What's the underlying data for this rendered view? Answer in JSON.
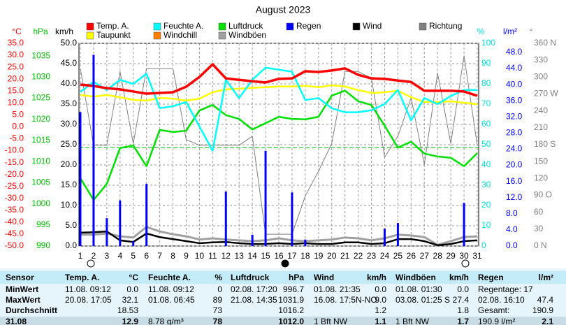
{
  "chart_data": {
    "type": "line",
    "title": "August 2023",
    "x": [
      1,
      2,
      3,
      4,
      5,
      6,
      7,
      8,
      9,
      10,
      11,
      12,
      13,
      14,
      15,
      16,
      17,
      18,
      19,
      20,
      21,
      22,
      23,
      24,
      25,
      26,
      27,
      28,
      29,
      30,
      31
    ],
    "xlim": [
      1,
      31
    ],
    "xticks": [
      1,
      2,
      3,
      4,
      5,
      6,
      7,
      8,
      9,
      10,
      11,
      12,
      13,
      14,
      15,
      16,
      17,
      18,
      19,
      20,
      21,
      22,
      23,
      24,
      25,
      26,
      27,
      28,
      29,
      30,
      31
    ],
    "grid": true,
    "hpa_reference": 1013.25,
    "axes": [
      {
        "label": "°C",
        "color": "#ff0000",
        "ylim": [
          -50,
          35
        ],
        "yticks": [
          {
            "value": 35,
            "label": "35.0"
          },
          {
            "value": 30,
            "label": "30.0"
          },
          {
            "value": 25,
            "label": "25.0"
          },
          {
            "value": 20,
            "label": "20.0"
          },
          {
            "value": 15,
            "label": "15.0"
          },
          {
            "value": 10,
            "label": "10.0"
          },
          {
            "value": 5,
            "label": "5.0"
          },
          {
            "value": 0,
            "label": "0.0"
          },
          {
            "value": -5,
            "label": "-5.0"
          },
          {
            "value": -10,
            "label": "-10.0"
          },
          {
            "value": -15,
            "label": "-15.0"
          },
          {
            "value": -20,
            "label": "-20.0"
          },
          {
            "value": -25,
            "label": "-25.0"
          },
          {
            "value": -30,
            "label": "-30.0"
          },
          {
            "value": -35,
            "label": "-35.0"
          },
          {
            "value": -40,
            "label": "-40.0"
          },
          {
            "value": -45,
            "label": "-45.0"
          },
          {
            "value": -50,
            "label": "-50.0"
          }
        ]
      },
      {
        "label": "hPa",
        "color": "#00c000",
        "ylim": [
          990,
          1038
        ],
        "yticks": [
          1035,
          1030,
          1025,
          1020,
          1015,
          1010,
          1005,
          1000,
          995,
          990
        ]
      },
      {
        "label": "km/h",
        "color": "#000000",
        "ylim": [
          0,
          50
        ],
        "yticks": [
          {
            "value": 50,
            "label": "50.0"
          },
          {
            "value": 45,
            "label": "45.0"
          },
          {
            "value": 40,
            "label": "40.0"
          },
          {
            "value": 35,
            "label": "35.0"
          },
          {
            "value": 30,
            "label": "30.0"
          },
          {
            "value": 25,
            "label": "25.0"
          },
          {
            "value": 20,
            "label": "20.0"
          },
          {
            "value": 15,
            "label": "15.0"
          },
          {
            "value": 10,
            "label": "10.0"
          },
          {
            "value": 5,
            "label": "5.0"
          },
          {
            "value": 0,
            "label": "0.0"
          }
        ]
      },
      {
        "label": "%",
        "color": "#00e0e0",
        "ylim": [
          0,
          100
        ],
        "yticks": [
          100,
          90,
          80,
          70,
          60,
          50,
          40,
          30,
          20,
          10,
          0
        ]
      },
      {
        "label": "l/m²",
        "color": "#0000ff",
        "ylim": [
          0,
          50.25
        ],
        "yticks": [
          {
            "value": 48,
            "label": "48.0"
          },
          {
            "value": 44,
            "label": "44.0"
          },
          {
            "value": 40,
            "label": "40.0"
          },
          {
            "value": 36,
            "label": "36.0"
          },
          {
            "value": 32,
            "label": "32.0"
          },
          {
            "value": 28,
            "label": "28.0"
          },
          {
            "value": 24,
            "label": "24.0"
          },
          {
            "value": 20,
            "label": "20.0"
          },
          {
            "value": 16,
            "label": "16.0"
          },
          {
            "value": 12,
            "label": "12.0"
          },
          {
            "value": 8,
            "label": "8.0"
          },
          {
            "value": 4,
            "label": "4.0"
          },
          {
            "value": 0,
            "label": "0.0"
          }
        ]
      },
      {
        "label": "°",
        "color": "#808080",
        "ylim": [
          0,
          360
        ],
        "yticks": [
          {
            "value": 360,
            "label": "360 N"
          },
          330,
          300,
          {
            "value": 270,
            "label": "270 W"
          },
          240,
          210,
          {
            "value": 180,
            "label": "180 S"
          },
          150,
          120,
          {
            "value": 90,
            "label": "90 O"
          },
          60,
          30,
          {
            "value": 0,
            "label": "0 N"
          }
        ]
      }
    ],
    "series": [
      {
        "name": "Temp. A.",
        "color": "#ff0000",
        "axis": 0,
        "width": 3.5,
        "values": [
          17.7,
          17.1,
          16.2,
          15.7,
          14.8,
          13.9,
          14.2,
          14.5,
          16.8,
          20.9,
          26.2,
          20.3,
          19.7,
          19.1,
          18.6,
          20.1,
          20.3,
          23.3,
          23.0,
          23.6,
          24.5,
          21.8,
          20.3,
          20.1,
          19.4,
          18.8,
          15.1,
          15.1,
          15.1,
          14.8,
          13.0
        ]
      },
      {
        "name": "Feuchte A.",
        "color": "#00ffff",
        "axis": 3,
        "width": 2.5,
        "values": [
          76,
          81,
          77,
          82,
          80,
          85,
          68,
          69,
          71,
          59,
          47,
          82,
          73,
          82,
          88,
          87,
          86,
          72,
          73,
          68,
          66,
          66,
          67,
          70,
          77,
          62,
          73,
          70,
          74,
          77,
          77
        ]
      },
      {
        "name": "Luftdruck",
        "color": "#00e000",
        "axis": 1,
        "width": 2.5,
        "values": [
          1006.1,
          1000.9,
          1004.7,
          1013.2,
          1013.8,
          1008.9,
          1017.5,
          1017.0,
          1017.3,
          1022.1,
          1023.4,
          1021.0,
          1020.1,
          1017.6,
          1019.1,
          1020.6,
          1020.1,
          1020.0,
          1020.6,
          1025.6,
          1026.8,
          1024.3,
          1023.4,
          1018.5,
          1013.3,
          1014.7,
          1011.9,
          1011.2,
          1010.9,
          1008.9,
          1012.0
        ]
      },
      {
        "name": "Regen",
        "color": "#0000ff",
        "axis": 4,
        "style": "bar",
        "values": [
          33.2,
          47.4,
          6.9,
          11.3,
          1.2,
          15.4,
          0,
          0,
          0,
          0,
          0,
          13.5,
          0,
          2.8,
          23.6,
          0,
          13.3,
          1.6,
          0,
          0,
          0,
          0,
          0,
          4.3,
          5.7,
          0,
          0,
          0,
          0,
          10.7,
          0
        ]
      },
      {
        "name": "Wind",
        "color": "#000000",
        "axis": 2,
        "width": 2.5,
        "values": [
          3.3,
          3.4,
          3.6,
          1.4,
          1.0,
          3.1,
          2.2,
          1.7,
          1.2,
          0.7,
          0.9,
          1.0,
          0.7,
          0.5,
          0.5,
          0.7,
          0.5,
          0.7,
          0.5,
          0.5,
          0.9,
          0.9,
          0.5,
          0.7,
          1.7,
          1.7,
          1.2,
          0.2,
          0.5,
          1.2,
          1.4
        ]
      },
      {
        "name": "Richtung",
        "color": "#808080",
        "axis": 5,
        "width": 1,
        "values": [
          315,
          179,
          179,
          310,
          182,
          315,
          315,
          315,
          189,
          179,
          179,
          179,
          179,
          195,
          21,
          21,
          21,
          89,
          133,
          182,
          310,
          310,
          298,
          158,
          195,
          263,
          145,
          307,
          182,
          338,
          179
        ]
      },
      {
        "name": "Taupunkt",
        "color": "#ffff00",
        "axis": 0,
        "width": 2.5,
        "values": [
          13.3,
          12.7,
          13.3,
          12.4,
          11.3,
          11.0,
          12.1,
          11.8,
          11.0,
          11.8,
          14.5,
          15.7,
          16.0,
          16.3,
          16.6,
          16.9,
          16.9,
          17.2,
          16.6,
          17.4,
          16.9,
          15.4,
          14.2,
          14.5,
          15.1,
          12.4,
          10.4,
          10.4,
          10.7,
          10.1,
          9.5
        ]
      },
      {
        "name": "Windböen",
        "color": "#a0a0a0",
        "axis": 2,
        "width": 3,
        "values": [
          2.8,
          2.8,
          3.1,
          2.4,
          2.1,
          4.7,
          3.6,
          2.9,
          2.4,
          1.6,
          1.9,
          1.6,
          1.4,
          1.2,
          1.4,
          1.9,
          1.4,
          1.2,
          1.4,
          1.6,
          2.1,
          1.9,
          1.4,
          1.9,
          2.8,
          2.6,
          2.2,
          0.3,
          1.2,
          2.2,
          2.4
        ]
      }
    ],
    "legend_only": [
      {
        "name": "Windchill",
        "color": "#ff8000"
      }
    ]
  },
  "table": {
    "rows": [
      [
        "Sensor",
        "Temp. A.",
        "°C",
        "Feuchte A.",
        "%",
        "Luftdruck",
        "hPa",
        "Wind",
        "km/h",
        "Windböen",
        "km/h",
        "Regen",
        "l/m²"
      ],
      [
        "MinWert",
        "11.08. 09:12",
        "0.0",
        "11.08. 09:12",
        "0",
        "02.08. 17:20",
        "996.7",
        "01.08. 21:35",
        "0.0",
        "01.08. 01:30",
        "0.0",
        "Regentage: 17",
        null
      ],
      [
        "MaxWert",
        "20.08. 17:05",
        "32.1",
        "01.08. 06:45",
        "89",
        "21.08. 14:35",
        "1031.9",
        "16.08. 17:5N-NO",
        "9.0",
        "03.08. 01:25 S",
        "27.4",
        "02.08. 16:10",
        "47.4"
      ],
      [
        "Durchschnitt",
        null,
        "18.53",
        null,
        "73",
        null,
        "1016.2",
        null,
        "1.2",
        null,
        "1.8",
        "Gesamt:",
        "190.9"
      ],
      [
        "31.08",
        null,
        "12.9",
        "8.78 g/m³",
        "78",
        null,
        "1012.0",
        "1 Bft NW",
        "1.1",
        "1 Bft NW",
        "1.7",
        "190.9 l/m²",
        "2.1"
      ]
    ]
  }
}
